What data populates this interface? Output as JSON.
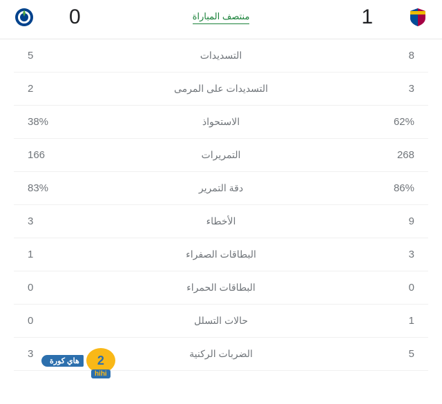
{
  "match": {
    "status": "منتصف المباراة",
    "status_color": "#188038",
    "home": {
      "name": "barcelona",
      "score": "1",
      "badge_colors": {
        "primary": "#a50044",
        "secondary": "#004d98",
        "accent": "#edbb00"
      }
    },
    "away": {
      "name": "porto",
      "score": "0",
      "badge_colors": {
        "primary": "#00428c",
        "secondary": "#ffffff"
      }
    }
  },
  "stats": [
    {
      "label": "التسديدات",
      "home": "8",
      "away": "5"
    },
    {
      "label": "التسديدات على المرمى",
      "home": "3",
      "away": "2"
    },
    {
      "label": "الاستحواذ",
      "home": "62%",
      "away": "38%"
    },
    {
      "label": "التمريرات",
      "home": "268",
      "away": "166"
    },
    {
      "label": "دقة التمرير",
      "home": "86%",
      "away": "83%"
    },
    {
      "label": "الأخطاء",
      "home": "9",
      "away": "3"
    },
    {
      "label": "البطاقات الصفراء",
      "home": "3",
      "away": "1"
    },
    {
      "label": "البطاقات الحمراء",
      "home": "0",
      "away": "0"
    },
    {
      "label": "حالات التسلل",
      "home": "1",
      "away": "0"
    },
    {
      "label": "الضربات الركنية",
      "home": "5",
      "away": "3"
    }
  ],
  "watermark": {
    "text": "هاي كورة",
    "brand": "hihi",
    "number": "2"
  },
  "styling": {
    "background": "#ffffff",
    "text_color": "#70757a",
    "score_color": "#202124",
    "border_color": "#f0f0f0",
    "stat_label_fontsize": 14,
    "stat_value_fontsize": 15,
    "score_fontsize": 30
  }
}
